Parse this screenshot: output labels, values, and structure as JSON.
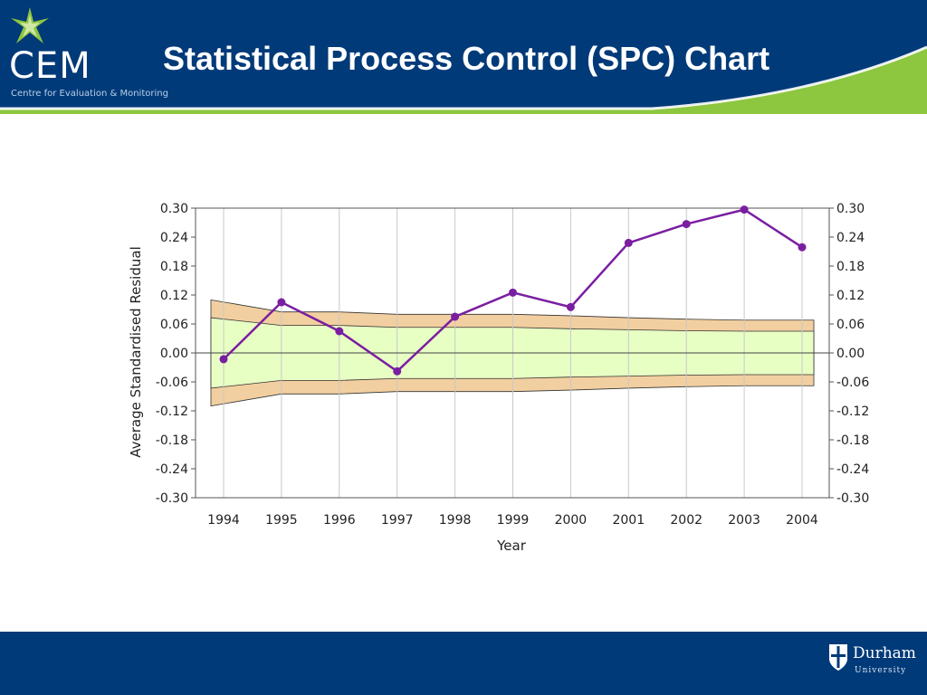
{
  "header": {
    "title": "Statistical Process Control (SPC) Chart",
    "logo_text": "CEM",
    "logo_subtitle": "Centre for Evaluation & Monitoring",
    "bg_color": "#003a79",
    "accent_color": "#8dc63f"
  },
  "footer": {
    "logo_text": "Durham",
    "logo_subtext": "University"
  },
  "chart_data": {
    "type": "line",
    "title": "",
    "xlabel": "Year",
    "ylabel": "Average Standardised Residual",
    "ylim": [
      -0.3,
      0.3
    ],
    "yticks": [
      "0.30",
      "0.24",
      "0.18",
      "0.12",
      "0.06",
      "0.00",
      "-0.06",
      "-0.12",
      "-0.18",
      "-0.24",
      "-0.30"
    ],
    "ytick_values": [
      0.3,
      0.24,
      0.18,
      0.12,
      0.06,
      0.0,
      -0.06,
      -0.12,
      -0.18,
      -0.24,
      -0.3
    ],
    "categories": [
      "1994",
      "1995",
      "1996",
      "1997",
      "1998",
      "1999",
      "2000",
      "2001",
      "2002",
      "2003",
      "2004"
    ],
    "series": [
      {
        "values": [
          -0.013,
          0.105,
          0.045,
          -0.038,
          0.075,
          0.125,
          0.095,
          0.228,
          0.267,
          0.297,
          0.219
        ],
        "color": "#7a1ea1"
      }
    ],
    "inner_limit_upper": [
      0.073,
      0.057,
      0.057,
      0.053,
      0.053,
      0.053,
      0.05,
      0.048,
      0.046,
      0.045,
      0.045
    ],
    "inner_limit_lower": [
      -0.073,
      -0.057,
      -0.057,
      -0.053,
      -0.053,
      -0.053,
      -0.05,
      -0.048,
      -0.046,
      -0.045,
      -0.045
    ],
    "outer_limit_upper": [
      0.11,
      0.085,
      0.085,
      0.08,
      0.08,
      0.08,
      0.077,
      0.073,
      0.07,
      0.068,
      0.068
    ],
    "outer_limit_lower": [
      -0.11,
      -0.085,
      -0.085,
      -0.08,
      -0.08,
      -0.08,
      -0.077,
      -0.073,
      -0.07,
      -0.068,
      -0.068
    ],
    "inner_band_color": "#e8ffc4",
    "outer_band_color": "#f2cfa0",
    "grid": true,
    "right_axis": true
  }
}
